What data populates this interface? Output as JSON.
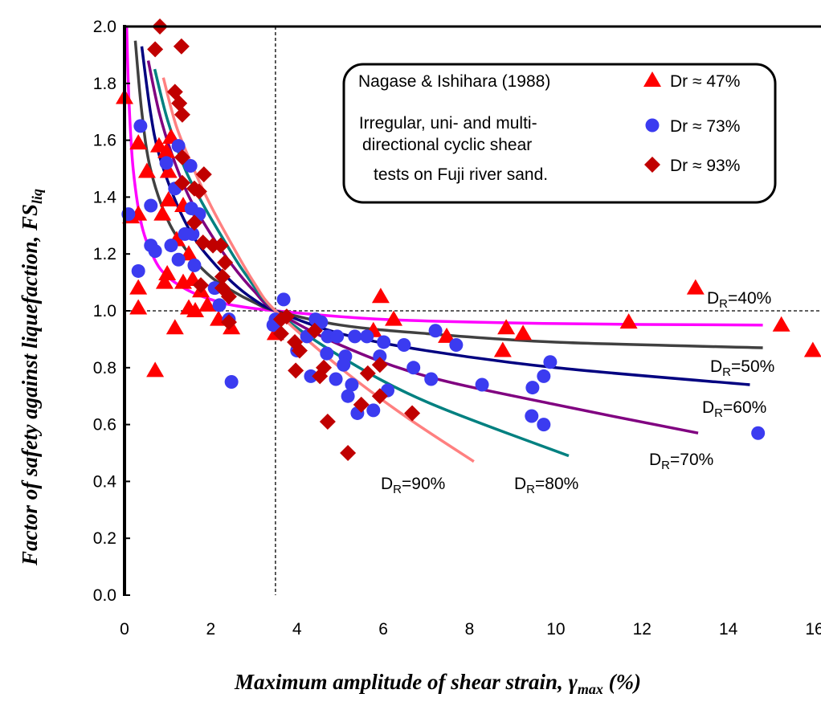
{
  "chart_data": {
    "type": "scatter",
    "xlabel": "Maximum amplitude of shear strain, γmax (%)",
    "xlabel_parts": {
      "main": "Maximum amplitude of shear strain, ",
      "sym": "γ",
      "sub": "max",
      "rest": " (%)"
    },
    "ylabel": "Factor of safety against liquefaction, FSliq",
    "ylabel_parts": {
      "main": "Factor of safety against liquefaction, ",
      "sym": "FS",
      "sub": "liq"
    },
    "xlim": [
      0,
      16
    ],
    "ylim": [
      0,
      2.0
    ],
    "xticks": [
      "0",
      "2",
      "4",
      "6",
      "8",
      "10",
      "12",
      "14",
      "16"
    ],
    "yticks": [
      "0.0",
      "0.2",
      "0.4",
      "0.6",
      "0.8",
      "1.0",
      "1.2",
      "1.4",
      "1.6",
      "1.8",
      "2.0"
    ],
    "reference_lines": {
      "x": 3.5,
      "y": 1.0
    },
    "legend": {
      "placement": "top-right",
      "text": [
        "Nagase & Ishihara (1988)",
        " Irregular, uni- and multi-",
        "directional cyclic shear",
        "tests on Fuji river sand."
      ],
      "entries": [
        "Dr ≈ 47%",
        "Dr ≈ 73%",
        "Dr ≈ 93%"
      ]
    },
    "series": [
      {
        "name": "Dr ≈ 47%",
        "marker": "triangle",
        "color": "#ff0000",
        "points": [
          [
            0,
            1.75
          ],
          [
            0.32,
            1.59
          ],
          [
            0.15,
            1.33
          ],
          [
            0.32,
            1.34
          ],
          [
            0.32,
            1.08
          ],
          [
            0.32,
            1.01
          ],
          [
            1.08,
            1.61
          ],
          [
            0.8,
            1.58
          ],
          [
            0.97,
            1.56
          ],
          [
            0.52,
            1.49
          ],
          [
            1.02,
            1.49
          ],
          [
            1.02,
            1.39
          ],
          [
            0.88,
            1.34
          ],
          [
            1.36,
            1.37
          ],
          [
            1.21,
            1.25
          ],
          [
            1.49,
            1.2
          ],
          [
            0.99,
            1.13
          ],
          [
            0.93,
            1.1
          ],
          [
            1.36,
            1.1
          ],
          [
            1.58,
            1.11
          ],
          [
            1.77,
            1.07
          ],
          [
            1.49,
            1.01
          ],
          [
            1.64,
            1.0
          ],
          [
            1.92,
            1.02
          ],
          [
            2.18,
            0.97
          ],
          [
            2.48,
            0.94
          ],
          [
            1.17,
            0.94
          ],
          [
            0.71,
            0.79
          ],
          [
            3.5,
            0.92
          ],
          [
            5.94,
            1.05
          ],
          [
            6.24,
            0.97
          ],
          [
            5.77,
            0.93
          ],
          [
            7.47,
            0.91
          ],
          [
            8.85,
            0.94
          ],
          [
            9.24,
            0.92
          ],
          [
            8.77,
            0.86
          ],
          [
            11.69,
            0.96
          ],
          [
            13.24,
            1.08
          ],
          [
            15.23,
            0.95
          ],
          [
            15.96,
            0.86
          ]
        ]
      },
      {
        "name": "Dr ≈ 73%",
        "marker": "circle",
        "color": "#3b3bf0",
        "points": [
          [
            0.09,
            1.34
          ],
          [
            0.32,
            1.14
          ],
          [
            0.37,
            1.65
          ],
          [
            1.25,
            1.58
          ],
          [
            0.97,
            1.52
          ],
          [
            1.53,
            1.51
          ],
          [
            1.17,
            1.43
          ],
          [
            0.61,
            1.37
          ],
          [
            1.55,
            1.36
          ],
          [
            1.73,
            1.34
          ],
          [
            1.4,
            1.27
          ],
          [
            1.58,
            1.27
          ],
          [
            0.61,
            1.23
          ],
          [
            0.71,
            1.21
          ],
          [
            1.08,
            1.23
          ],
          [
            1.25,
            1.18
          ],
          [
            1.62,
            1.16
          ],
          [
            2.09,
            1.08
          ],
          [
            2.2,
            1.02
          ],
          [
            2.42,
            0.97
          ],
          [
            2.48,
            0.75
          ],
          [
            3.69,
            1.04
          ],
          [
            3.5,
            0.97
          ],
          [
            3.45,
            0.95
          ],
          [
            4.43,
            0.97
          ],
          [
            4.56,
            0.96
          ],
          [
            4.23,
            0.91
          ],
          [
            4.71,
            0.91
          ],
          [
            4.93,
            0.91
          ],
          [
            5.34,
            0.91
          ],
          [
            5.62,
            0.91
          ],
          [
            6.01,
            0.89
          ],
          [
            6.48,
            0.88
          ],
          [
            7.21,
            0.93
          ],
          [
            7.69,
            0.88
          ],
          [
            4.0,
            0.86
          ],
          [
            4.69,
            0.85
          ],
          [
            5.12,
            0.84
          ],
          [
            5.08,
            0.81
          ],
          [
            5.92,
            0.84
          ],
          [
            6.7,
            0.8
          ],
          [
            7.11,
            0.76
          ],
          [
            4.32,
            0.77
          ],
          [
            4.9,
            0.76
          ],
          [
            5.27,
            0.74
          ],
          [
            5.18,
            0.7
          ],
          [
            6.1,
            0.72
          ],
          [
            5.4,
            0.64
          ],
          [
            5.77,
            0.65
          ],
          [
            8.29,
            0.74
          ],
          [
            9.87,
            0.82
          ],
          [
            9.72,
            0.77
          ],
          [
            9.46,
            0.73
          ],
          [
            9.44,
            0.63
          ],
          [
            9.72,
            0.6
          ],
          [
            14.69,
            0.57
          ]
        ]
      },
      {
        "name": "Dr ≈ 93%",
        "marker": "diamond",
        "color": "#c00000",
        "points": [
          [
            0.82,
            2.0
          ],
          [
            0.71,
            1.92
          ],
          [
            1.32,
            1.93
          ],
          [
            1.17,
            1.77
          ],
          [
            1.27,
            1.73
          ],
          [
            1.34,
            1.69
          ],
          [
            1.34,
            1.54
          ],
          [
            1.84,
            1.48
          ],
          [
            1.34,
            1.45
          ],
          [
            1.62,
            1.43
          ],
          [
            1.73,
            1.42
          ],
          [
            1.62,
            1.31
          ],
          [
            1.82,
            1.24
          ],
          [
            2.05,
            1.23
          ],
          [
            2.23,
            1.23
          ],
          [
            2.33,
            1.17
          ],
          [
            1.77,
            1.09
          ],
          [
            2.27,
            1.12
          ],
          [
            2.27,
            1.08
          ],
          [
            2.42,
            1.05
          ],
          [
            2.42,
            0.96
          ],
          [
            3.63,
            0.97
          ],
          [
            3.76,
            0.98
          ],
          [
            3.63,
            0.92
          ],
          [
            4.41,
            0.93
          ],
          [
            3.95,
            0.89
          ],
          [
            4.06,
            0.86
          ],
          [
            3.97,
            0.79
          ],
          [
            4.62,
            0.8
          ],
          [
            4.53,
            0.77
          ],
          [
            5.64,
            0.78
          ],
          [
            5.92,
            0.81
          ],
          [
            5.92,
            0.7
          ],
          [
            5.49,
            0.67
          ],
          [
            4.71,
            0.61
          ],
          [
            6.67,
            0.64
          ],
          [
            5.18,
            0.5
          ]
        ]
      }
    ],
    "curves": [
      {
        "label": {
          "d": "D",
          "sub": "R",
          "rest": "=40%"
        },
        "color": "#ff00ff",
        "points": [
          [
            0.05,
            2.0
          ],
          [
            0.1,
            1.75
          ],
          [
            0.2,
            1.5
          ],
          [
            0.4,
            1.3
          ],
          [
            0.7,
            1.18
          ],
          [
            1,
            1.12
          ],
          [
            1.5,
            1.07
          ],
          [
            2,
            1.04
          ],
          [
            2.5,
            1.02
          ],
          [
            3.5,
            1.0
          ],
          [
            6,
            0.97
          ],
          [
            10,
            0.955
          ],
          [
            14.8,
            0.95
          ]
        ]
      },
      {
        "label": {
          "d": "D",
          "sub": "R",
          "rest": "=50%"
        },
        "color": "#404040",
        "points": [
          [
            0.25,
            1.95
          ],
          [
            0.4,
            1.7
          ],
          [
            0.6,
            1.5
          ],
          [
            1,
            1.32
          ],
          [
            1.5,
            1.2
          ],
          [
            2,
            1.12
          ],
          [
            2.5,
            1.07
          ],
          [
            3,
            1.03
          ],
          [
            3.5,
            1.0
          ],
          [
            5,
            0.95
          ],
          [
            7,
            0.92
          ],
          [
            10,
            0.89
          ],
          [
            14.8,
            0.87
          ]
        ]
      },
      {
        "label": {
          "d": "D",
          "sub": "R",
          "rest": "=60%"
        },
        "color": "#000080",
        "points": [
          [
            0.4,
            1.93
          ],
          [
            0.6,
            1.7
          ],
          [
            0.8,
            1.55
          ],
          [
            1.2,
            1.38
          ],
          [
            1.6,
            1.26
          ],
          [
            2,
            1.18
          ],
          [
            2.5,
            1.1
          ],
          [
            3,
            1.04
          ],
          [
            3.5,
            1.0
          ],
          [
            5,
            0.92
          ],
          [
            7,
            0.86
          ],
          [
            10,
            0.8
          ],
          [
            14.5,
            0.74
          ]
        ]
      },
      {
        "label": {
          "d": "D",
          "sub": "R",
          "rest": "=70%"
        },
        "color": "#800080",
        "points": [
          [
            0.55,
            1.88
          ],
          [
            0.8,
            1.7
          ],
          [
            1.1,
            1.55
          ],
          [
            1.5,
            1.4
          ],
          [
            2,
            1.27
          ],
          [
            2.5,
            1.16
          ],
          [
            3,
            1.07
          ],
          [
            3.5,
            1.0
          ],
          [
            5,
            0.88
          ],
          [
            7,
            0.77
          ],
          [
            10,
            0.67
          ],
          [
            13.3,
            0.57
          ]
        ]
      },
      {
        "label": {
          "d": "D",
          "sub": "R",
          "rest": "=80%"
        },
        "color": "#008080",
        "points": [
          [
            0.7,
            1.85
          ],
          [
            1,
            1.67
          ],
          [
            1.4,
            1.5
          ],
          [
            1.8,
            1.38
          ],
          [
            2.3,
            1.25
          ],
          [
            2.8,
            1.13
          ],
          [
            3.5,
            1.0
          ],
          [
            5,
            0.84
          ],
          [
            7,
            0.68
          ],
          [
            10.3,
            0.49
          ]
        ]
      },
      {
        "label": {
          "d": "D",
          "sub": "R",
          "rest": "=90%"
        },
        "color": "#ff8080",
        "points": [
          [
            0.9,
            1.82
          ],
          [
            1.2,
            1.65
          ],
          [
            1.6,
            1.5
          ],
          [
            2,
            1.37
          ],
          [
            2.5,
            1.23
          ],
          [
            3,
            1.1
          ],
          [
            3.5,
            1.0
          ],
          [
            5,
            0.8
          ],
          [
            6.5,
            0.63
          ],
          [
            8.1,
            0.47
          ]
        ]
      }
    ]
  }
}
